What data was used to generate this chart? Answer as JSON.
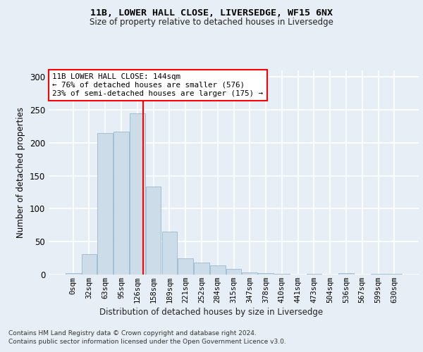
{
  "title1": "11B, LOWER HALL CLOSE, LIVERSEDGE, WF15 6NX",
  "title2": "Size of property relative to detached houses in Liversedge",
  "xlabel": "Distribution of detached houses by size in Liversedge",
  "ylabel": "Number of detached properties",
  "bar_color": "#ccdce8",
  "bar_edge_color": "#8ab0c8",
  "background_color": "#e8eef5",
  "grid_color": "white",
  "bin_labels": [
    "0sqm",
    "32sqm",
    "63sqm",
    "95sqm",
    "126sqm",
    "158sqm",
    "189sqm",
    "221sqm",
    "252sqm",
    "284sqm",
    "315sqm",
    "347sqm",
    "378sqm",
    "410sqm",
    "441sqm",
    "473sqm",
    "504sqm",
    "536sqm",
    "567sqm",
    "599sqm",
    "630sqm"
  ],
  "bar_values": [
    2,
    31,
    215,
    217,
    245,
    134,
    65,
    25,
    18,
    14,
    9,
    3,
    2,
    1,
    0,
    1,
    0,
    2,
    0,
    1,
    1
  ],
  "property_line_x": 4.375,
  "property_line_color": "red",
  "annotation_text": "11B LOWER HALL CLOSE: 144sqm\n← 76% of detached houses are smaller (576)\n23% of semi-detached houses are larger (175) →",
  "annotation_box_color": "white",
  "annotation_box_edge_color": "red",
  "ylim": [
    0,
    310
  ],
  "yticks": [
    0,
    50,
    100,
    150,
    200,
    250,
    300
  ],
  "footer1": "Contains HM Land Registry data © Crown copyright and database right 2024.",
  "footer2": "Contains public sector information licensed under the Open Government Licence v3.0."
}
